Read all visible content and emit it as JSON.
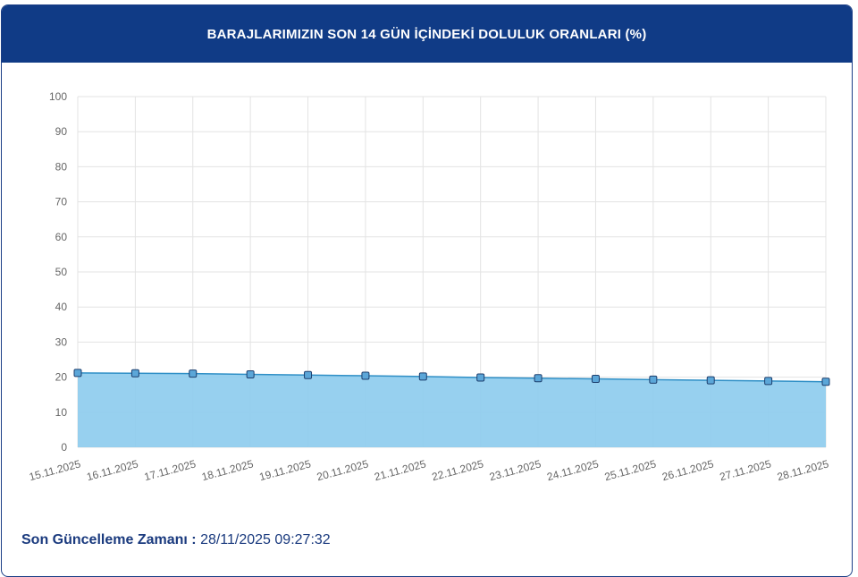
{
  "header": {
    "title": "BARAJLARIMIZIN SON 14 GÜN İÇİNDEKİ DOLULUK ORANLARI (%)"
  },
  "footer": {
    "label": "Son Güncelleme Zamanı :",
    "value": "28/11/2025 09:27:32"
  },
  "colors": {
    "header_bg": "#103b86",
    "area_fill": "#8ccbed",
    "line": "#2f8fc6",
    "marker_fill": "#5ba6d8",
    "marker_stroke": "#1d3f6e"
  },
  "chart_data": {
    "type": "area",
    "title": "",
    "xlabel": "",
    "ylabel": "",
    "ylim": [
      0,
      100
    ],
    "yticks": [
      0,
      10,
      20,
      30,
      40,
      50,
      60,
      70,
      80,
      90,
      100
    ],
    "grid": true,
    "categories": [
      "15.11.2025",
      "16.11.2025",
      "17.11.2025",
      "18.11.2025",
      "19.11.2025",
      "20.11.2025",
      "21.11.2025",
      "22.11.2025",
      "23.11.2025",
      "24.11.2025",
      "25.11.2025",
      "26.11.2025",
      "27.11.2025",
      "28.11.2025"
    ],
    "values": [
      21.2,
      21.1,
      21.0,
      20.8,
      20.6,
      20.4,
      20.2,
      19.9,
      19.7,
      19.5,
      19.3,
      19.1,
      18.9,
      18.7
    ]
  }
}
